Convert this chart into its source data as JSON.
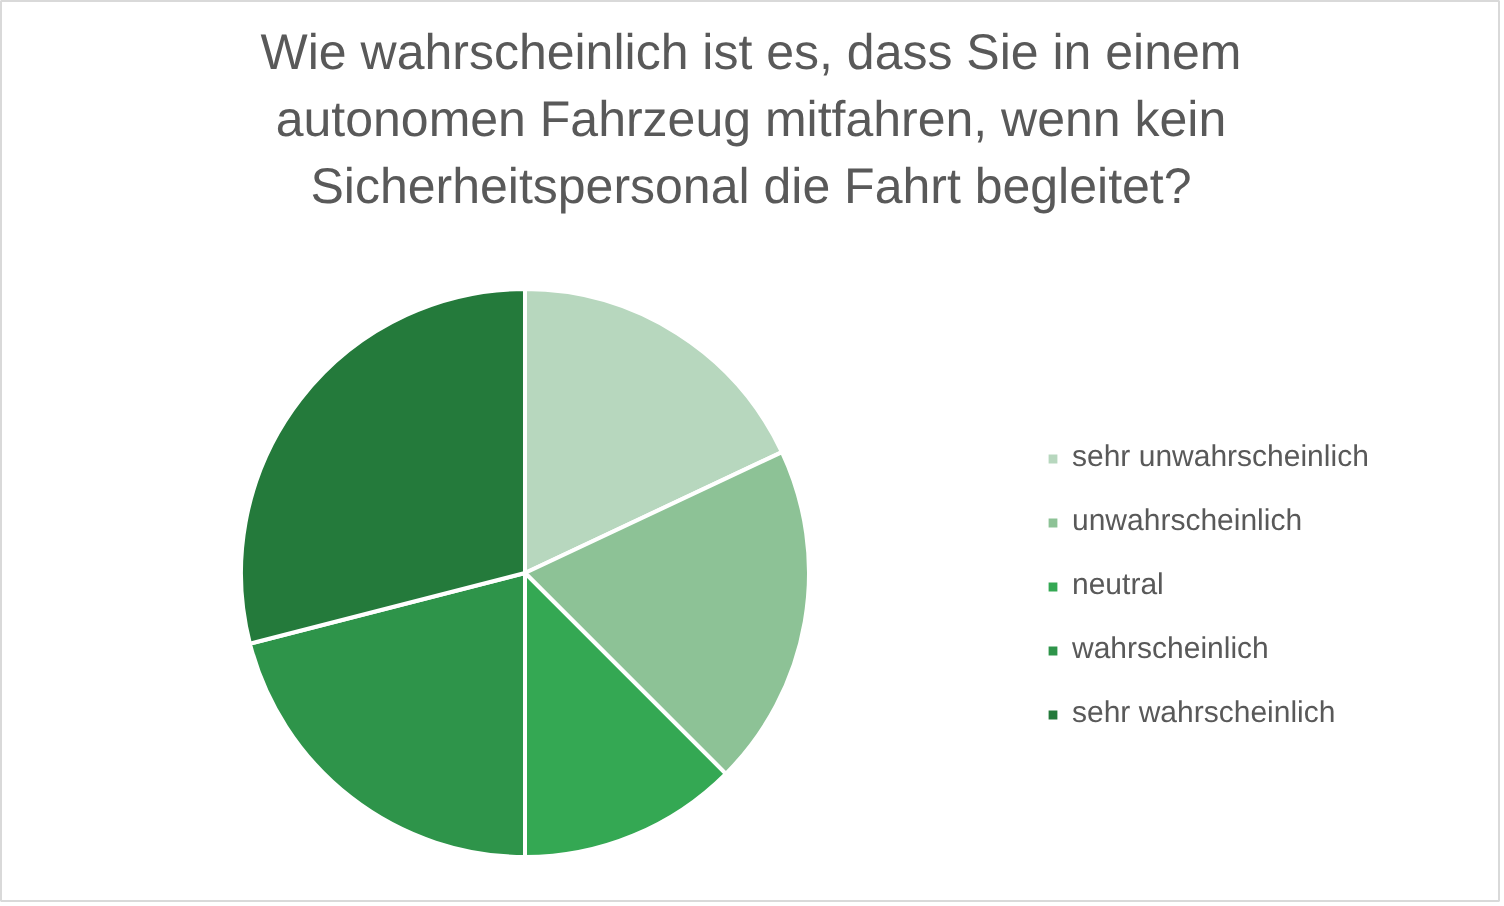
{
  "chart_data": {
    "type": "pie",
    "title": "Wie wahrscheinlich ist es, dass Sie in einem\nautonomen Fahrzeug mitfahren, wenn kein\nSicherheitspersonal die Fahrt begleitet?",
    "categories": [
      "sehr unwahrscheinlich",
      "unwahrscheinlich",
      "neutral",
      "wahrscheinlich",
      "sehr wahrscheinlich"
    ],
    "values": [
      18,
      19.5,
      12.5,
      21,
      29
    ],
    "colors": [
      "#b7d7be",
      "#8dc296",
      "#34a853",
      "#2e944a",
      "#247a3b"
    ],
    "legend": "right"
  }
}
